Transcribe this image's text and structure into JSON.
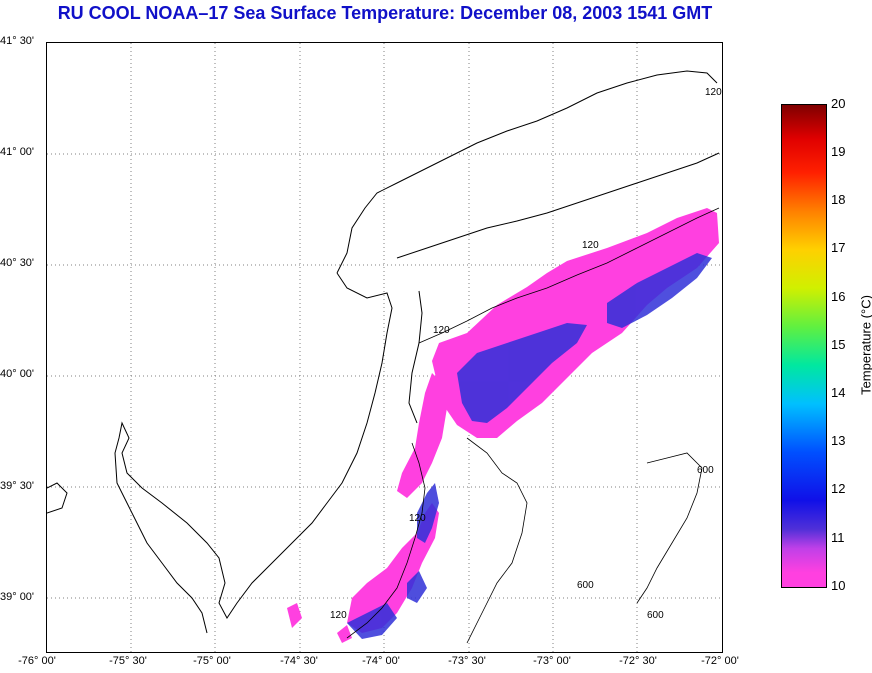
{
  "title": "RU COOL  NOAA–17  Sea Surface Temperature:  December 08, 2003 1541 GMT",
  "lat_labels": [
    "41° 30'",
    "41° 00'",
    "40° 30'",
    "40° 00'",
    "39° 30'",
    "39° 00'"
  ],
  "lon_labels": [
    "-76° 00'",
    "-75° 30'",
    "-75° 00'",
    "-74° 30'",
    "-74° 00'",
    "-73° 30'",
    "-73° 00'",
    "-72° 30'",
    "-72° 00'"
  ],
  "isobath_labels": [
    "120",
    "120",
    "120",
    "120",
    "120",
    "600",
    "600",
    "600"
  ],
  "colorbar": {
    "ticks": [
      "20",
      "19",
      "18",
      "17",
      "16",
      "15",
      "14",
      "13",
      "12",
      "11",
      "10"
    ],
    "label": "Temperature (°C)",
    "min": 10,
    "max": 20
  },
  "colors": {
    "title": "#1010c8",
    "warm_water": "#ff40e0",
    "cool_water": "#3030d8",
    "coast": "#000000",
    "grid": "#808080"
  },
  "map_data": {
    "lat_range": [
      38.75,
      41.5
    ],
    "lon_range": [
      -76.0,
      -72.0
    ],
    "grid_spacing_deg": 0.5
  }
}
